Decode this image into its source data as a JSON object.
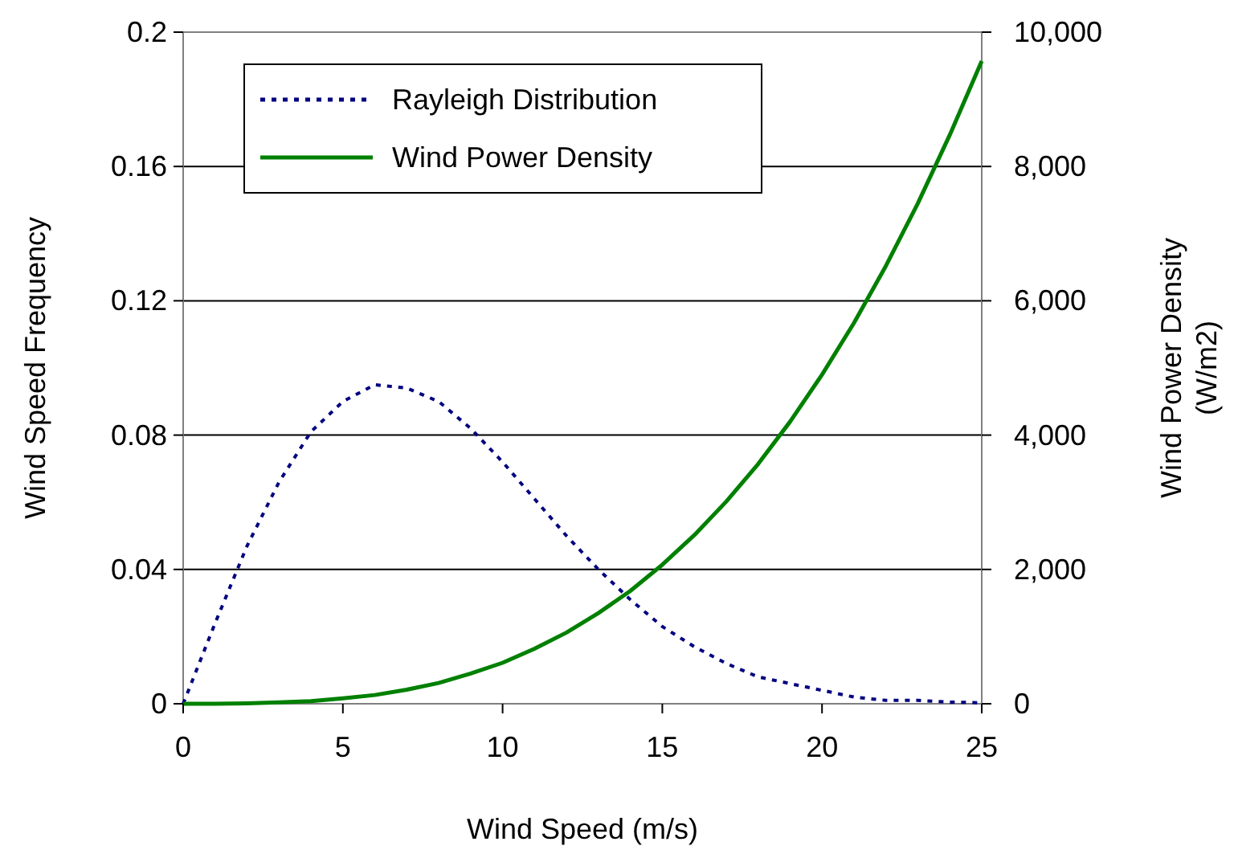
{
  "chart_data": {
    "type": "line",
    "xlabel": "Wind Speed (m/s)",
    "ylabel": "Wind Speed Frequency",
    "y2label": "Wind Power Density (W/m2)",
    "xlim": [
      0,
      25
    ],
    "xticks": [
      0,
      5,
      10,
      15,
      20,
      25
    ],
    "ylim": [
      0,
      0.2
    ],
    "yticks": [
      0,
      0.04,
      0.08,
      0.12,
      0.16,
      0.2
    ],
    "y2lim": [
      0,
      10000
    ],
    "y2ticks": [
      0,
      {
        "value": 2000,
        "label": "2,000"
      },
      {
        "value": 4000,
        "label": "4,000"
      },
      {
        "value": 6000,
        "label": "6,000"
      },
      {
        "value": 8000,
        "label": "8,000"
      },
      {
        "value": 10000,
        "label": "10,000"
      }
    ],
    "x": [
      0,
      1,
      2,
      3,
      4,
      5,
      6,
      7,
      8,
      9,
      10,
      11,
      12,
      13,
      14,
      15,
      16,
      17,
      18,
      19,
      20,
      21,
      22,
      23,
      24,
      25
    ],
    "grid": "y",
    "legend": "top left",
    "marker": "none",
    "series": [
      {
        "name": "Rayleigh Distribution",
        "color": "#000080",
        "line_style": "dotted",
        "values": [
          0,
          0.024,
          0.047,
          0.066,
          0.081,
          0.09,
          0.095,
          0.094,
          0.09,
          0.082,
          0.072,
          0.061,
          0.05,
          0.04,
          0.031,
          0.023,
          0.017,
          0.012,
          0.008,
          0.006,
          0.004,
          0.002,
          0.001,
          0.001,
          0.0005,
          0.0003
        ]
      },
      {
        "name": "Wind Power Density",
        "color": "#008000",
        "line_style": "solid",
        "axis": "y2",
        "values": [
          0,
          0,
          5,
          20,
          40,
          80,
          130,
          210,
          310,
          450,
          610,
          820,
          1060,
          1350,
          1680,
          2070,
          2510,
          3010,
          3570,
          4200,
          4900,
          5670,
          6520,
          7450,
          8470,
          9570
        ]
      }
    ]
  }
}
